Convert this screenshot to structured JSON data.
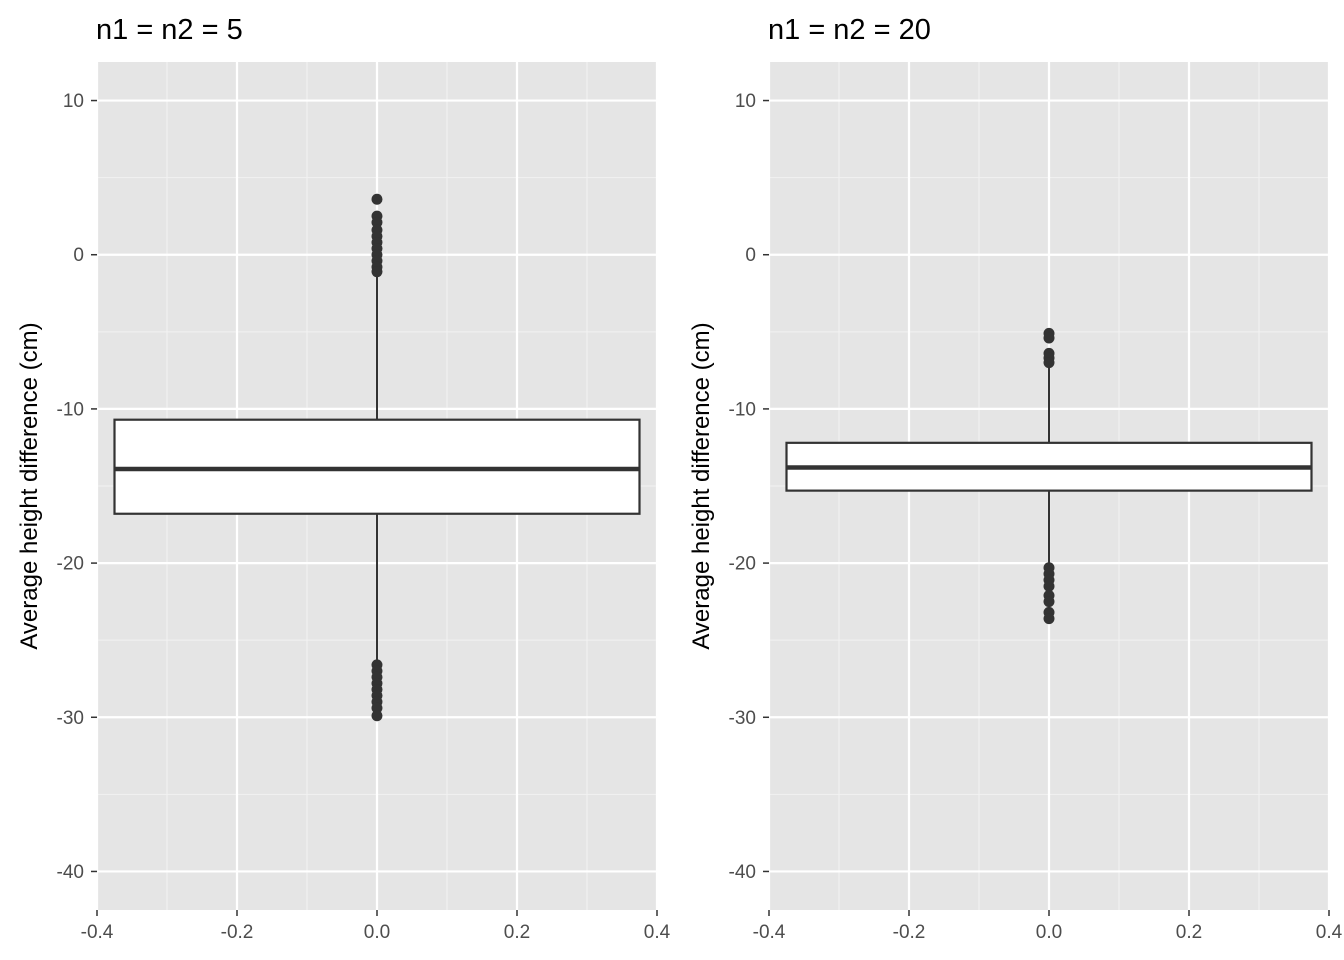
{
  "chart_data": [
    {
      "type": "box",
      "title": "n1 = n2 = 5",
      "xlabel": "",
      "ylabel": "Average height difference (cm)",
      "xlim": [
        -0.4,
        0.4
      ],
      "ylim": [
        -42.5,
        12.5
      ],
      "x_ticks": [
        "-0.4",
        "-0.2",
        "0.0",
        "0.2",
        "0.4"
      ],
      "y_ticks": [
        "-40",
        "-30",
        "-20",
        "-10",
        "0",
        "10"
      ],
      "grid": true,
      "box": {
        "x_center": 0.0,
        "x_range": [
          -0.375,
          0.375
        ],
        "q1": -16.8,
        "median": -13.9,
        "q3": -10.7,
        "whisker_low": -26.4,
        "whisker_high": -1.2,
        "outliers": [
          3.6,
          2.5,
          2.1,
          1.6,
          1.2,
          0.8,
          0.4,
          0.0,
          -0.4,
          -0.8,
          -1.1,
          -26.6,
          -27.0,
          -27.4,
          -27.8,
          -28.2,
          -28.6,
          -29.0,
          -29.4,
          -29.9
        ]
      }
    },
    {
      "type": "box",
      "title": "n1 = n2 = 20",
      "xlabel": "",
      "ylabel": "Average height difference (cm)",
      "xlim": [
        -0.4,
        0.4
      ],
      "ylim": [
        -42.5,
        12.5
      ],
      "x_ticks": [
        "-0.4",
        "-0.2",
        "0.0",
        "0.2",
        "0.4"
      ],
      "y_ticks": [
        "-40",
        "-30",
        "-20",
        "-10",
        "0",
        "10"
      ],
      "grid": true,
      "box": {
        "x_center": 0.0,
        "x_range": [
          -0.375,
          0.375
        ],
        "q1": -15.3,
        "median": -13.8,
        "q3": -12.2,
        "whisker_low": -20.0,
        "whisker_high": -7.3,
        "outliers": [
          -5.1,
          -5.4,
          -6.4,
          -6.7,
          -7.0,
          -20.3,
          -20.7,
          -21.1,
          -21.5,
          -22.1,
          -22.5,
          -23.2,
          -23.6
        ]
      }
    }
  ]
}
